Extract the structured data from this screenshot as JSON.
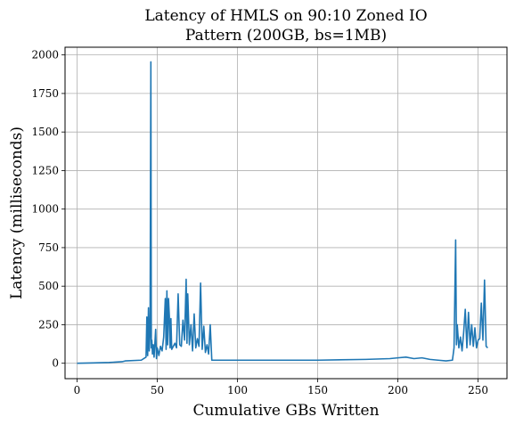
{
  "chart_data": {
    "type": "line",
    "title_line1": "Latency of HMLS on 90:10 Zoned IO",
    "title_line2": "Pattern (200GB, bs=1MB)",
    "xlabel": "Cumulative GBs Written",
    "ylabel": "Latency (milliseconds)",
    "xlim": [
      -7.5,
      268
    ],
    "ylim": [
      -100,
      2050
    ],
    "xticks": [
      0,
      50,
      100,
      150,
      200,
      250
    ],
    "yticks": [
      0,
      250,
      500,
      750,
      1000,
      1250,
      1500,
      1750,
      2000
    ],
    "grid": true,
    "series": [
      {
        "color": "#1f77b4",
        "x": [
          0,
          10,
          20,
          28,
          30,
          40,
          43,
          43.5,
          44,
          44.5,
          45,
          45.5,
          46,
          46.3,
          46.6,
          47,
          47.5,
          48,
          49,
          49.5,
          50,
          51,
          52,
          53,
          54,
          55,
          55.5,
          56,
          56.5,
          57,
          57.5,
          58,
          58.5,
          59,
          60,
          61,
          62,
          63,
          64,
          65,
          66,
          67,
          68,
          68.5,
          69,
          70,
          71,
          72,
          73,
          74,
          75,
          76,
          77,
          78,
          79,
          80,
          81,
          82,
          83,
          84,
          90,
          100,
          120,
          150,
          180,
          195,
          200,
          205,
          210,
          215,
          220,
          225,
          230,
          234,
          235,
          236,
          236.5,
          237,
          238,
          239,
          240,
          241,
          242,
          243,
          244,
          245,
          246,
          247,
          248,
          249,
          250,
          251,
          252,
          253,
          254,
          255,
          256
        ],
        "y": [
          0,
          2,
          5,
          10,
          15,
          20,
          40,
          300,
          50,
          360,
          80,
          200,
          1955,
          100,
          150,
          60,
          120,
          40,
          220,
          30,
          100,
          50,
          110,
          80,
          170,
          420,
          90,
          470,
          120,
          420,
          310,
          100,
          290,
          90,
          110,
          130,
          100,
          450,
          120,
          110,
          280,
          150,
          545,
          130,
          450,
          120,
          250,
          80,
          320,
          100,
          160,
          110,
          520,
          90,
          240,
          70,
          120,
          60,
          250,
          20,
          20,
          20,
          20,
          20,
          25,
          30,
          35,
          40,
          30,
          35,
          25,
          20,
          15,
          20,
          100,
          800,
          120,
          250,
          100,
          170,
          80,
          200,
          350,
          100,
          330,
          120,
          250,
          110,
          230,
          100,
          150,
          160,
          390,
          150,
          540,
          110,
          100
        ]
      }
    ]
  }
}
